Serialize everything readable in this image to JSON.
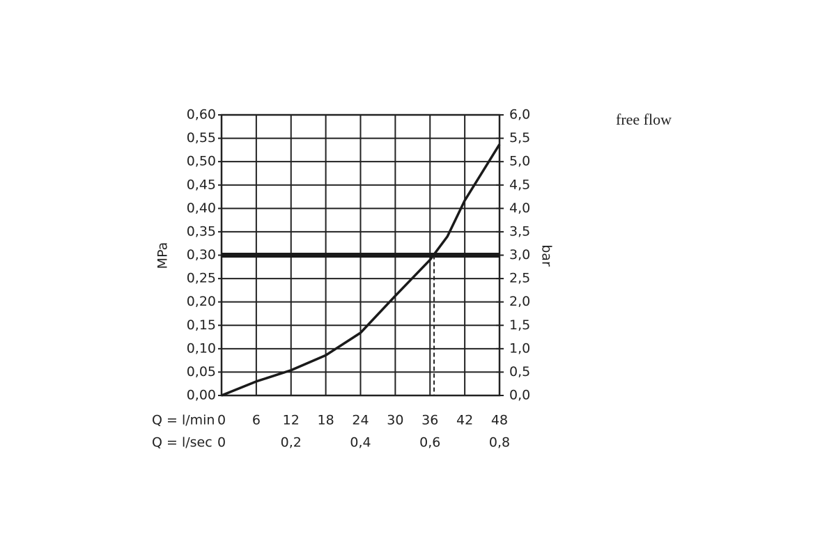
{
  "chart_data": {
    "type": "line",
    "annotation": "free flow",
    "xlabel": "Q = l/min",
    "x2label": "Q = l/sec",
    "ylabel": "MPa",
    "y2label": "bar",
    "x": [
      0,
      6,
      12,
      18,
      24,
      30,
      36,
      39,
      42,
      48
    ],
    "series": [
      {
        "color": "#1a1a1a",
        "values": [
          0,
          0.03,
          0.054,
          0.086,
          0.134,
          0.213,
          0.29,
          0.34,
          0.417,
          0.537
        ]
      }
    ],
    "xlim": [
      0,
      48
    ],
    "xticks": [
      0,
      6,
      12,
      18,
      24,
      30,
      36,
      42,
      48
    ],
    "x2lim": [
      0,
      0.8
    ],
    "x2ticks": [
      0,
      {
        "value": 0.2,
        "label": "0,2"
      },
      {
        "value": 0.4,
        "label": "0,4"
      },
      {
        "value": 0.6,
        "label": "0,6"
      },
      {
        "value": 0.8,
        "label": "0,8"
      }
    ],
    "ylim": [
      0,
      0.6
    ],
    "yticks": [
      {
        "value": 0,
        "label": "0,00"
      },
      {
        "value": 0.05,
        "label": "0,05"
      },
      {
        "value": 0.1,
        "label": "0,10"
      },
      {
        "value": 0.15,
        "label": "0,15"
      },
      {
        "value": 0.2,
        "label": "0,20"
      },
      {
        "value": 0.25,
        "label": "0,25"
      },
      {
        "value": 0.3,
        "label": "0,30"
      },
      {
        "value": 0.35,
        "label": "0,35"
      },
      {
        "value": 0.4,
        "label": "0,40"
      },
      {
        "value": 0.45,
        "label": "0,45"
      },
      {
        "value": 0.5,
        "label": "0,50"
      },
      {
        "value": 0.55,
        "label": "0,55"
      },
      {
        "value": 0.6,
        "label": "0,60"
      }
    ],
    "y2lim": [
      0,
      6
    ],
    "y2ticks": [
      {
        "value": 0,
        "label": "0,0"
      },
      {
        "value": 0.5,
        "label": "0,5"
      },
      {
        "value": 1,
        "label": "1,0"
      },
      {
        "value": 1.5,
        "label": "1,5"
      },
      {
        "value": 2,
        "label": "2,0"
      },
      {
        "value": 2.5,
        "label": "2,5"
      },
      {
        "value": 3,
        "label": "3,0"
      },
      {
        "value": 3.5,
        "label": "3,5"
      },
      {
        "value": 4,
        "label": "4,0"
      },
      {
        "value": 4.5,
        "label": "4,5"
      },
      {
        "value": 5,
        "label": "5,0"
      },
      {
        "value": 5.5,
        "label": "5,5"
      },
      {
        "value": 6,
        "label": "6,0"
      }
    ],
    "reference_y": 0.3,
    "reference_x": 36.7,
    "grid": true
  }
}
